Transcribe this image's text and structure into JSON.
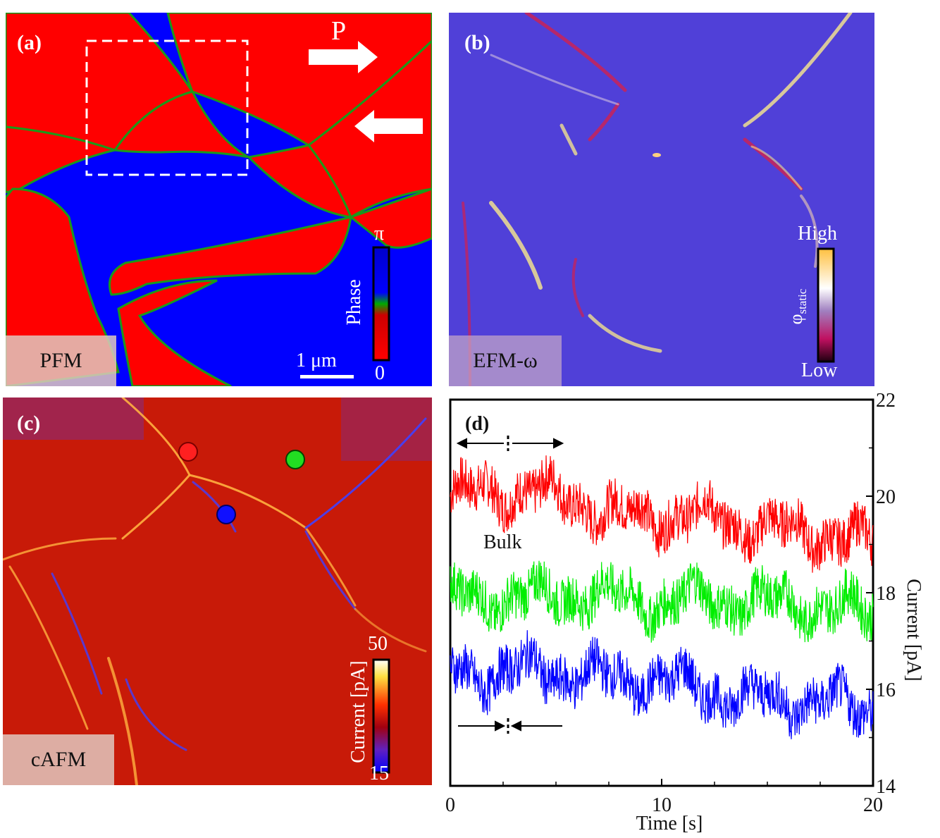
{
  "panel_a": {
    "label": "(a)",
    "tag": "PFM",
    "arrow_label": "P",
    "colorbar_title": "Phase",
    "colorbar_top": "π",
    "colorbar_bottom": "0",
    "scalebar": "1 μm",
    "colors": {
      "domain_a": "#ff0000",
      "domain_b": "#0000ff",
      "wall": "#00b000"
    }
  },
  "panel_b": {
    "label": "(b)",
    "tag": "EFM-ω",
    "colorbar_top": "High",
    "colorbar_bottom": "Low",
    "colorbar_symbol": "φ",
    "colorbar_subscript": "static",
    "colors": {
      "background": "#5040d8"
    }
  },
  "panel_c": {
    "label": "(c)",
    "tag": "cAFM",
    "colorbar_title": "Current [pA]",
    "colorbar_top": "50",
    "colorbar_bottom": "15",
    "marker_colors": [
      "#ff2020",
      "#22dd22",
      "#1010ff"
    ]
  },
  "panel_d": {
    "label": "(d)",
    "annotation": "Bulk",
    "chart_data": {
      "type": "line",
      "xlabel": "Time [s]",
      "ylabel": "Current [pA]",
      "xlim": [
        0,
        20
      ],
      "ylim": [
        14,
        22
      ],
      "x_ticks": [
        "0",
        "10",
        "20"
      ],
      "y_ticks": [
        "14",
        "16",
        "18",
        "20",
        "22"
      ],
      "series": [
        {
          "color": "#ff0000",
          "x": [
            0,
            2,
            4,
            6,
            8,
            10,
            12,
            14,
            16,
            18,
            20
          ],
          "values": [
            20.0,
            20.1,
            20.1,
            19.9,
            19.6,
            19.6,
            19.6,
            19.4,
            19.3,
            19.2,
            19.0
          ]
        },
        {
          "color": "#00ee00",
          "x": [
            0,
            2,
            4,
            6,
            8,
            10,
            12,
            14,
            16,
            18,
            20
          ],
          "values": [
            17.9,
            17.9,
            17.9,
            18.0,
            17.9,
            17.8,
            17.9,
            17.8,
            17.8,
            17.7,
            17.6
          ]
        },
        {
          "color": "#0000ff",
          "x": [
            0,
            2,
            4,
            6,
            8,
            10,
            12,
            14,
            16,
            18,
            20
          ],
          "values": [
            16.4,
            16.3,
            16.4,
            16.3,
            16.2,
            16.2,
            16.0,
            15.8,
            15.8,
            15.7,
            15.6
          ]
        }
      ]
    }
  }
}
